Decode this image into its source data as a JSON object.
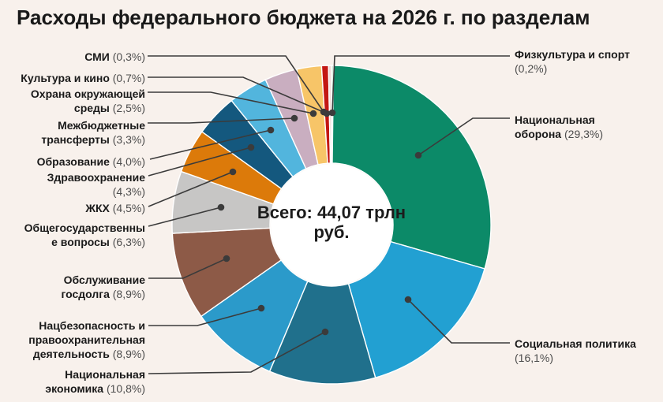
{
  "title": "Расходы федерального бюджета на 2026 г. по разделам",
  "center": {
    "line1": "Всего: 44,07 трлн",
    "line2": "руб."
  },
  "colors": {
    "background": "#f8f1ec",
    "leader_line": "#3b3b3b",
    "label_name": "#1a1a1a",
    "label_pct": "#4d4d4d",
    "center_circle": "#ffffff",
    "slice_gap": "#ffffff"
  },
  "chart_data": {
    "type": "pie",
    "subtype": "donut",
    "title": "Расходы федерального бюджета на 2026 г. по разделам",
    "center_label": "Всего: 44,07 трлн руб.",
    "total_label": "44,07 трлн руб.",
    "unit": "% of total",
    "start_angle_deg": 0,
    "direction": "clockwise",
    "slices": [
      {
        "key": "fizkultura-i-sport",
        "name": "Физкультура и спорт",
        "value": 0.2,
        "pct_label": "0,2%",
        "color": "#b5dcc5",
        "label_lines": [
          "Физкультура и спорт",
          "(0,2%)"
        ],
        "side": "right"
      },
      {
        "key": "nacionalnaya-oborona",
        "name": "Национальная оборона",
        "value": 29.3,
        "pct_label": "29,3%",
        "color": "#0c8a68",
        "label_lines": [
          "Национальная",
          "оборона (29,3%)"
        ],
        "side": "right"
      },
      {
        "key": "socialnaya-politika",
        "name": "Социальная политика",
        "value": 16.1,
        "pct_label": "16,1%",
        "color": "#22a0d2",
        "label_lines": [
          "Социальная политика",
          "(16,1%)"
        ],
        "side": "right"
      },
      {
        "key": "nacionalnaya-ekonomika",
        "name": "Национальная экономика",
        "value": 10.8,
        "pct_label": "10,8%",
        "color": "#20708c",
        "label_lines": [
          "Национальная",
          "экономика (10,8%)"
        ],
        "side": "left"
      },
      {
        "key": "nacbezopasnost",
        "name": "Нацбезопасность и правоохранительная деятельность",
        "value": 8.9,
        "pct_label": "8,9%",
        "color": "#2b9aca",
        "label_lines": [
          "Нацбезопасность и",
          "правоохранительная",
          "деятельность (8,9%)"
        ],
        "side": "left"
      },
      {
        "key": "obsluzhivanie-gosdolga",
        "name": "Обслуживание госдолга",
        "value": 8.9,
        "pct_label": "8,9%",
        "color": "#8d5a47",
        "label_lines": [
          "Обслуживание",
          "госдолга (8,9%)"
        ],
        "side": "left"
      },
      {
        "key": "obshchegosudarstvennye-voprosy",
        "name": "Общегосударственные вопросы",
        "value": 6.3,
        "pct_label": "6,3%",
        "color": "#c7c6c5",
        "label_lines": [
          "Общегосударственны",
          "е вопросы (6,3%)"
        ],
        "side": "left"
      },
      {
        "key": "zhkh",
        "name": "ЖКХ",
        "value": 4.5,
        "pct_label": "4,5%",
        "color": "#dc7a0a",
        "label_lines": [
          "ЖКХ (4,5%)"
        ],
        "side": "left"
      },
      {
        "key": "zdravoohranenie",
        "name": "Здравоохранение",
        "value": 4.3,
        "pct_label": "4,3%",
        "color": "#14587e",
        "label_lines": [
          "Здравоохранение",
          "(4,3%)"
        ],
        "side": "left"
      },
      {
        "key": "obrazovanie",
        "name": "Образование",
        "value": 4.0,
        "pct_label": "4,0%",
        "color": "#52b5dd",
        "label_lines": [
          "Образование (4,0%)"
        ],
        "side": "left"
      },
      {
        "key": "mezhbyudzhetnye-transferty",
        "name": "Межбюджетные трансферты",
        "value": 3.3,
        "pct_label": "3,3%",
        "color": "#c9aec0",
        "label_lines": [
          "Межбюджетные",
          "трансферты (3,3%)"
        ],
        "side": "left"
      },
      {
        "key": "ohrana-okruzhayushchej-sredy",
        "name": "Охрана окружающей среды",
        "value": 2.5,
        "pct_label": "2,5%",
        "color": "#f7c568",
        "label_lines": [
          "Охрана окружающей",
          "среды (2,5%)"
        ],
        "side": "left"
      },
      {
        "key": "kultura-i-kino",
        "name": "Культура и кино",
        "value": 0.7,
        "pct_label": "0,7%",
        "color": "#c31713",
        "label_lines": [
          "Культура и кино (0,7%)"
        ],
        "side": "left"
      },
      {
        "key": "smi",
        "name": "СМИ",
        "value": 0.3,
        "pct_label": "0,3%",
        "color": "#eedad6",
        "label_lines": [
          "СМИ (0,3%)"
        ],
        "side": "left"
      }
    ]
  }
}
